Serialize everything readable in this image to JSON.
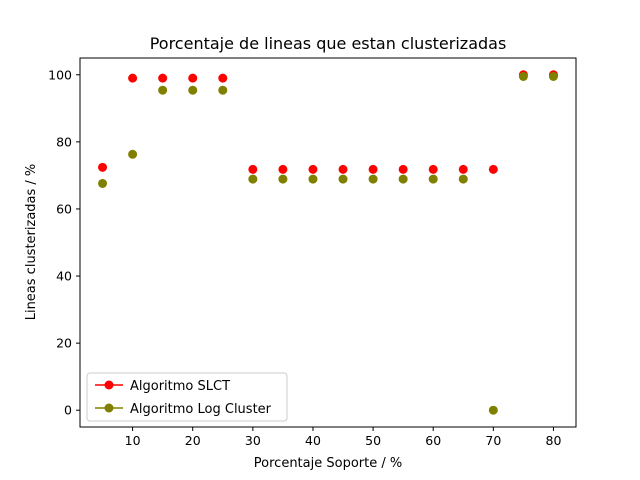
{
  "chart_data": {
    "type": "scatter",
    "title": "Porcentaje de lineas que estan clusterizadas",
    "xlabel": "Porcentaje Soporte / %",
    "ylabel": "Lineas clusterizadas / %",
    "xlim": [
      1.25,
      83.75
    ],
    "ylim": [
      -5,
      105
    ],
    "xticks": [
      10,
      20,
      30,
      40,
      50,
      60,
      70,
      80
    ],
    "yticks": [
      0,
      20,
      40,
      60,
      80,
      100
    ],
    "grid": false,
    "legend_position": "lower left",
    "series": [
      {
        "name": "Algoritmo SLCT",
        "color": "#ff0000",
        "x": [
          5,
          10,
          15,
          20,
          25,
          30,
          35,
          40,
          45,
          50,
          55,
          60,
          65,
          70,
          75,
          80
        ],
        "y": [
          72.4,
          99.0,
          99.0,
          99.0,
          99.0,
          71.8,
          71.8,
          71.8,
          71.8,
          71.8,
          71.8,
          71.8,
          71.8,
          71.8,
          100,
          100
        ]
      },
      {
        "name": "Algoritmo Log Cluster",
        "color": "#808000",
        "x": [
          5,
          10,
          15,
          20,
          25,
          30,
          35,
          40,
          45,
          50,
          55,
          60,
          65,
          70,
          75,
          80
        ],
        "y": [
          67.6,
          76.3,
          95.4,
          95.4,
          95.4,
          68.9,
          68.9,
          68.9,
          68.9,
          68.9,
          68.9,
          68.9,
          68.9,
          0,
          99.5,
          99.5
        ]
      }
    ]
  }
}
